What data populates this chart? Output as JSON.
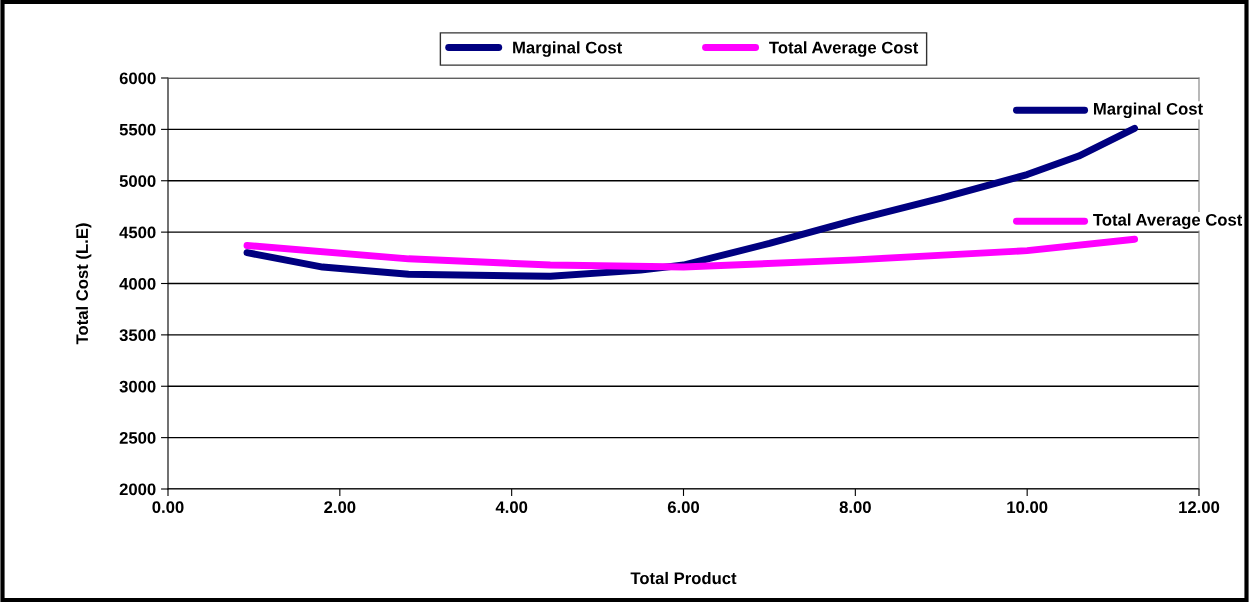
{
  "chart_data": {
    "type": "line",
    "xlabel": "Total Product",
    "ylabel": "Total Cost (L.E)",
    "xlim": [
      0,
      12
    ],
    "xticks": [
      {
        "value": 0,
        "label": "0.00"
      },
      {
        "value": 2,
        "label": "2.00"
      },
      {
        "value": 4,
        "label": "4.00"
      },
      {
        "value": 6,
        "label": "6.00"
      },
      {
        "value": 8,
        "label": "8.00"
      },
      {
        "value": 10,
        "label": "10.00"
      },
      {
        "value": 12,
        "label": "12.00"
      }
    ],
    "ylim": [
      2000,
      6000
    ],
    "yticks": [
      2000,
      2500,
      3000,
      3500,
      4000,
      4500,
      5000,
      5500,
      6000
    ],
    "grid": "y",
    "legend": "top",
    "marker": "none",
    "line_style": "solid",
    "series": [
      {
        "name": "Marginal Cost",
        "color": "#000080",
        "x": [
          0.92,
          1.8,
          2.8,
          4.45,
          5.5,
          6.0,
          7.0,
          8.0,
          9.0,
          10.0,
          10.6,
          11.25
        ],
        "values": [
          4300,
          4160,
          4090,
          4070,
          4130,
          4180,
          4390,
          4620,
          4830,
          5060,
          5240,
          5510
        ]
      },
      {
        "name": "Total Average Cost",
        "color": "#ff00ff",
        "x": [
          0.92,
          2.8,
          4.45,
          6.0,
          8.0,
          10.0,
          11.25
        ],
        "values": [
          4370,
          4240,
          4180,
          4160,
          4230,
          4320,
          4430
        ]
      }
    ],
    "annotations": [
      {
        "text": "Marginal Cost",
        "x": 11.25,
        "y": 5510
      },
      {
        "text": "Total Average Cost",
        "x": 11.25,
        "y": 4430
      }
    ]
  }
}
